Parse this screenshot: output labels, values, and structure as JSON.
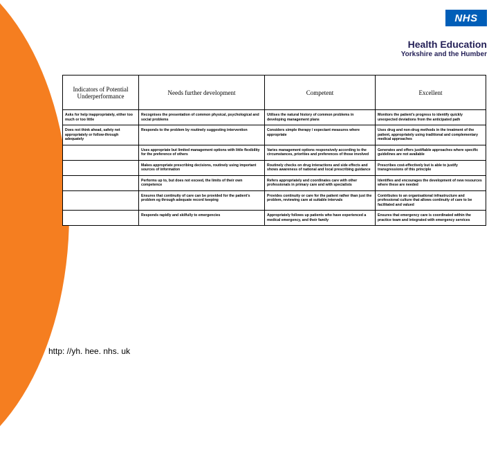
{
  "logo": {
    "text": "NHS",
    "bg": "#005eb8"
  },
  "org": {
    "line1": "Health Education",
    "line2": "Yorkshire and the Humber"
  },
  "accent_color": "#f57e20",
  "table": {
    "headers": [
      "Indicators of Potential Underperformance",
      "Needs further development",
      "Competent",
      "Excellent"
    ],
    "rows": [
      [
        "Asks for help inappropriately, either too much or too little",
        "Recognises the presentation of common physical, psychological and social problems",
        "Utilises the natural history of common problems in developing management plans",
        "Monitors the patient's progress to identify quickly unexpected deviations from the anticipated path"
      ],
      [
        "Does not think ahead, safety net appropriately or follow-through adequately",
        "Responds to the problem by routinely suggesting intervention",
        "Considers simple therapy / expectant measures where appropriate",
        "Uses drug and non-drug methods in the treatment of the patient, appropriately using traditional and complementary medical approaches"
      ],
      [
        "",
        "Uses appropriate but limited management options with little flexibility for the preference of others",
        "Varies management options responsively according to the circumstances, priorities and preferences of those involved",
        "Generates and offers justifiable approaches where specific guidelines are not available"
      ],
      [
        "",
        "Makes appropriate prescribing decisions, routinely using important sources of information",
        "Routinely checks on drug interactions and side effects and shows awareness of national and local prescribing guidance",
        "Prescribes cost-effectively but is able to justify transgressions of this principle"
      ],
      [
        "",
        "Performs up to, but does not exceed, the limits of their own competence",
        "Refers appropriately and coordinates care with other professionals in primary care and with specialists",
        "Identifies and encourages the development of new resources where these are needed"
      ],
      [
        "",
        "Ensures that continuity of care can be provided for the patient's problem eg through adequate record keeping",
        "Provides continuity or care for the patient rather than just the problem, reviewing care at suitable intervals",
        "Contributes to an organisational infrastructure and professional culture that allows continuity of care to be facilitated and valued"
      ],
      [
        "",
        "Responds rapidly and skilfully to emergencies",
        "Appropriately follows up patients who have experienced a medical emergency, and their family",
        "Ensures that emergency care is coordinated within the practice team and integrated with emergency services"
      ]
    ]
  },
  "footer": {
    "url": "http: //yh. hee. nhs. uk"
  }
}
